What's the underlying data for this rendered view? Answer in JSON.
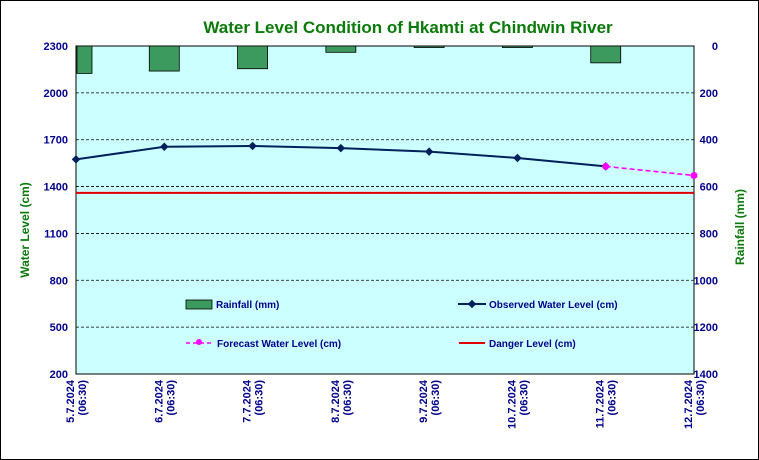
{
  "chart_data": {
    "type": "line",
    "title": "Water Level Condition of Hkamti at Chindwin River",
    "ylabel": "Water Level (cm)",
    "y2label": "Rainfall (mm)",
    "ylim": [
      200,
      2300
    ],
    "yticks": [
      2300,
      2000,
      1700,
      1400,
      1100,
      800,
      500,
      200
    ],
    "y2lim": [
      0,
      1400
    ],
    "y2ticks": [
      0,
      200,
      400,
      600,
      800,
      1000,
      1200,
      1400
    ],
    "categories": [
      {
        "date": "5.7.2024",
        "time": "(06:30)"
      },
      {
        "date": "6.7.2024",
        "time": "(06:30)"
      },
      {
        "date": "7.7.2024",
        "time": "(06:30)"
      },
      {
        "date": "8.7.2024",
        "time": "(06:30)"
      },
      {
        "date": "9.7.2024",
        "time": "(06:30)"
      },
      {
        "date": "10.7.2024",
        "time": "(06:30)"
      },
      {
        "date": "11.7.2024",
        "time": "(06:30)"
      },
      {
        "date": "12.7.2024",
        "time": "(06:30)"
      }
    ],
    "rainfall": {
      "name": "Rainfall (mm)",
      "color": "#3c9a5f",
      "values": [
        117,
        107,
        97,
        27,
        5,
        5,
        72,
        null
      ]
    },
    "observed": {
      "name": "Observed Water Level (cm)",
      "color": "#00205b",
      "values": [
        1574,
        1655,
        1660,
        1646,
        1624,
        1583,
        1529,
        null
      ]
    },
    "forecast": {
      "name": "Forecast Water Level (cm)",
      "color": "#ff00ff",
      "values": [
        null,
        null,
        null,
        null,
        null,
        null,
        1529,
        1471
      ]
    },
    "danger": {
      "name": "Danger Level (cm)",
      "color": "#e00000",
      "value": 1360
    },
    "plot_background": "#ccffff",
    "grid": "dashed-horizontal",
    "legend_placement": "inside-bottom"
  }
}
